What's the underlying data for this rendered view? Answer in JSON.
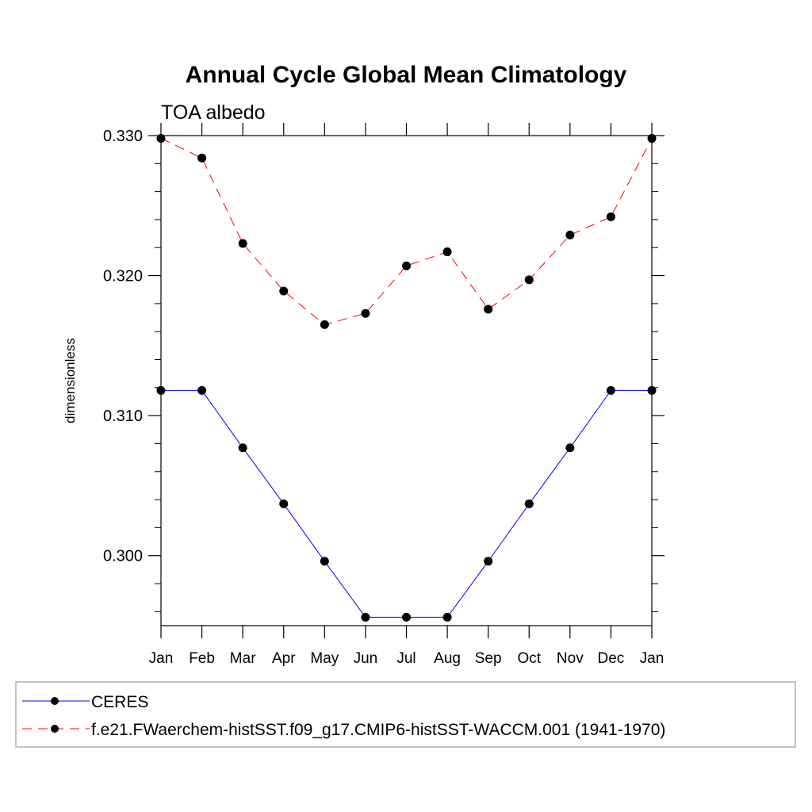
{
  "chart_data": {
    "type": "line",
    "title": "Annual Cycle Global Mean Climatology",
    "subtitle": "TOA albedo",
    "xlabel": "",
    "ylabel": "dimensionless",
    "categories": [
      "Jan",
      "Feb",
      "Mar",
      "Apr",
      "May",
      "Jun",
      "Jul",
      "Aug",
      "Sep",
      "Oct",
      "Nov",
      "Dec",
      "Jan"
    ],
    "ylim": [
      0.295,
      0.33
    ],
    "yticks": [
      0.3,
      0.31,
      0.32,
      0.33
    ],
    "ytick_labels": [
      "0.300",
      "0.310",
      "0.320",
      "0.330"
    ],
    "series": [
      {
        "name": "CERES",
        "color": "#0000ff",
        "line_style": "solid",
        "values": [
          0.3118,
          0.3118,
          0.3077,
          0.3037,
          0.2996,
          0.2956,
          0.2956,
          0.2956,
          0.2996,
          0.3037,
          0.3077,
          0.3118,
          0.3118
        ]
      },
      {
        "name": "f.e21.FWaerchem-histSST.f09_g17.CMIP6-histSST-WACCM.001 (1941-1970)",
        "color": "#ff0000",
        "line_style": "dashed",
        "values": [
          0.3298,
          0.3284,
          0.3223,
          0.3189,
          0.3165,
          0.3173,
          0.3207,
          0.3217,
          0.3176,
          0.3197,
          0.3229,
          0.3242,
          0.3298
        ]
      }
    ],
    "legend_position": "bottom",
    "marker_color": "#000000"
  }
}
